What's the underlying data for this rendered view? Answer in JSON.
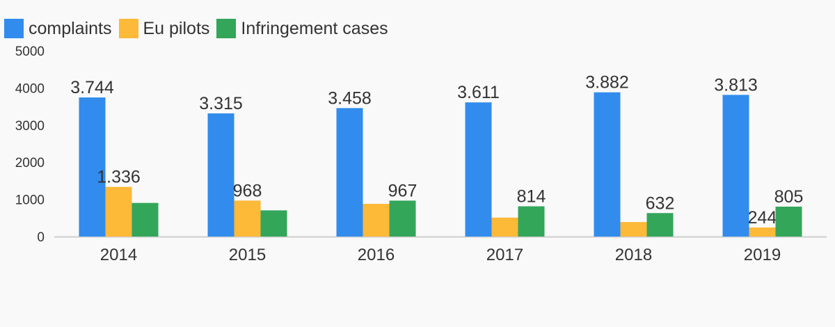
{
  "chart_data": {
    "type": "bar",
    "categories": [
      "2014",
      "2015",
      "2016",
      "2017",
      "2018",
      "2019"
    ],
    "series": [
      {
        "name": "complaints",
        "color": "#318ced",
        "values": [
          3744,
          3315,
          3458,
          3611,
          3882,
          3813
        ],
        "labels": [
          "3.744",
          "3.315",
          "3.458",
          "3.611",
          "3.882",
          "3.813"
        ]
      },
      {
        "name": "Eu pilots",
        "color": "#fdb938",
        "values": [
          1336,
          968,
          880,
          510,
          390,
          244
        ],
        "labels": [
          "1.336",
          "968",
          "",
          "",
          "",
          "244"
        ]
      },
      {
        "name": "Infringement cases",
        "color": "#33a65a",
        "values": [
          905,
          705,
          967,
          814,
          632,
          805
        ],
        "labels": [
          "",
          "",
          "967",
          "814",
          "632",
          "805"
        ]
      }
    ],
    "yticks": [
      "0",
      "1000",
      "2000",
      "3000",
      "4000",
      "5000"
    ],
    "ylim": [
      0,
      5000
    ],
    "title": "",
    "xlabel": "",
    "ylabel": "",
    "legend": "top-left",
    "grid": false
  }
}
